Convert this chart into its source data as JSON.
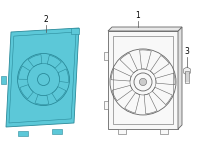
{
  "bg_color": "#ffffff",
  "item1_label": "1",
  "item2_label": "2",
  "item3_label": "3",
  "fill_blue": "#5cc8d8",
  "edge_blue": "#2a8a9a",
  "fill_white": "#f8f8f8",
  "edge_gray": "#666666",
  "edge_dark": "#444444",
  "line_color": "#555555",
  "figsize": [
    2.0,
    1.47
  ],
  "dpi": 100
}
